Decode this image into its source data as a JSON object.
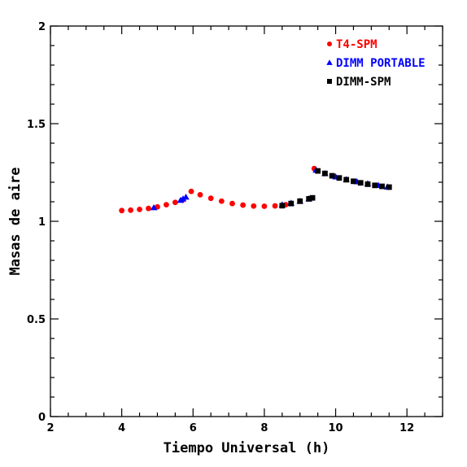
{
  "chart_data": {
    "type": "scatter",
    "title": "",
    "xlabel": "Tiempo Universal (h)",
    "ylabel": "Masas de aire",
    "xlim": [
      2,
      13
    ],
    "ylim": [
      0,
      2
    ],
    "xticks": [
      2,
      4,
      6,
      8,
      10,
      12
    ],
    "xtick_labels": [
      "2",
      "4",
      "6",
      "8",
      "10",
      "12"
    ],
    "yticks": [
      0,
      0.5,
      1,
      1.5,
      2
    ],
    "ytick_labels": [
      "0",
      "0.5",
      "1",
      "1.5",
      "2"
    ],
    "grid": false,
    "legend_position": "top-right",
    "series": [
      {
        "name": "T4-SPM",
        "color": "#ff0000",
        "marker": "circle",
        "x": [
          4.0,
          4.25,
          4.5,
          4.75,
          5.0,
          5.25,
          5.5,
          5.7,
          5.95,
          6.2,
          6.5,
          6.8,
          7.1,
          7.4,
          7.7,
          8.0,
          8.3,
          8.6,
          9.4
        ],
        "y": [
          1.055,
          1.057,
          1.061,
          1.066,
          1.074,
          1.085,
          1.097,
          1.108,
          1.153,
          1.136,
          1.118,
          1.103,
          1.091,
          1.083,
          1.078,
          1.077,
          1.079,
          1.085,
          1.27
        ]
      },
      {
        "name": "DIMM PORTABLE",
        "color": "#0000ff",
        "marker": "triangle",
        "x": [
          4.9,
          5.65,
          5.72,
          5.8,
          8.5,
          8.75,
          9.0,
          9.25,
          9.45,
          9.7,
          10.0,
          10.3,
          10.6,
          10.9,
          11.2,
          11.45
        ],
        "y": [
          1.07,
          1.108,
          1.115,
          1.124,
          1.085,
          1.093,
          1.103,
          1.115,
          1.262,
          1.245,
          1.228,
          1.214,
          1.203,
          1.193,
          1.184,
          1.176
        ]
      },
      {
        "name": "DIMM-SPM",
        "color": "#000000",
        "marker": "square",
        "x": [
          8.5,
          8.75,
          9.0,
          9.25,
          9.35,
          9.5,
          9.7,
          9.9,
          10.1,
          10.3,
          10.5,
          10.7,
          10.9,
          11.1,
          11.3,
          11.5
        ],
        "y": [
          1.08,
          1.091,
          1.103,
          1.115,
          1.12,
          1.258,
          1.245,
          1.233,
          1.222,
          1.213,
          1.205,
          1.197,
          1.19,
          1.184,
          1.179,
          1.175
        ]
      }
    ]
  }
}
